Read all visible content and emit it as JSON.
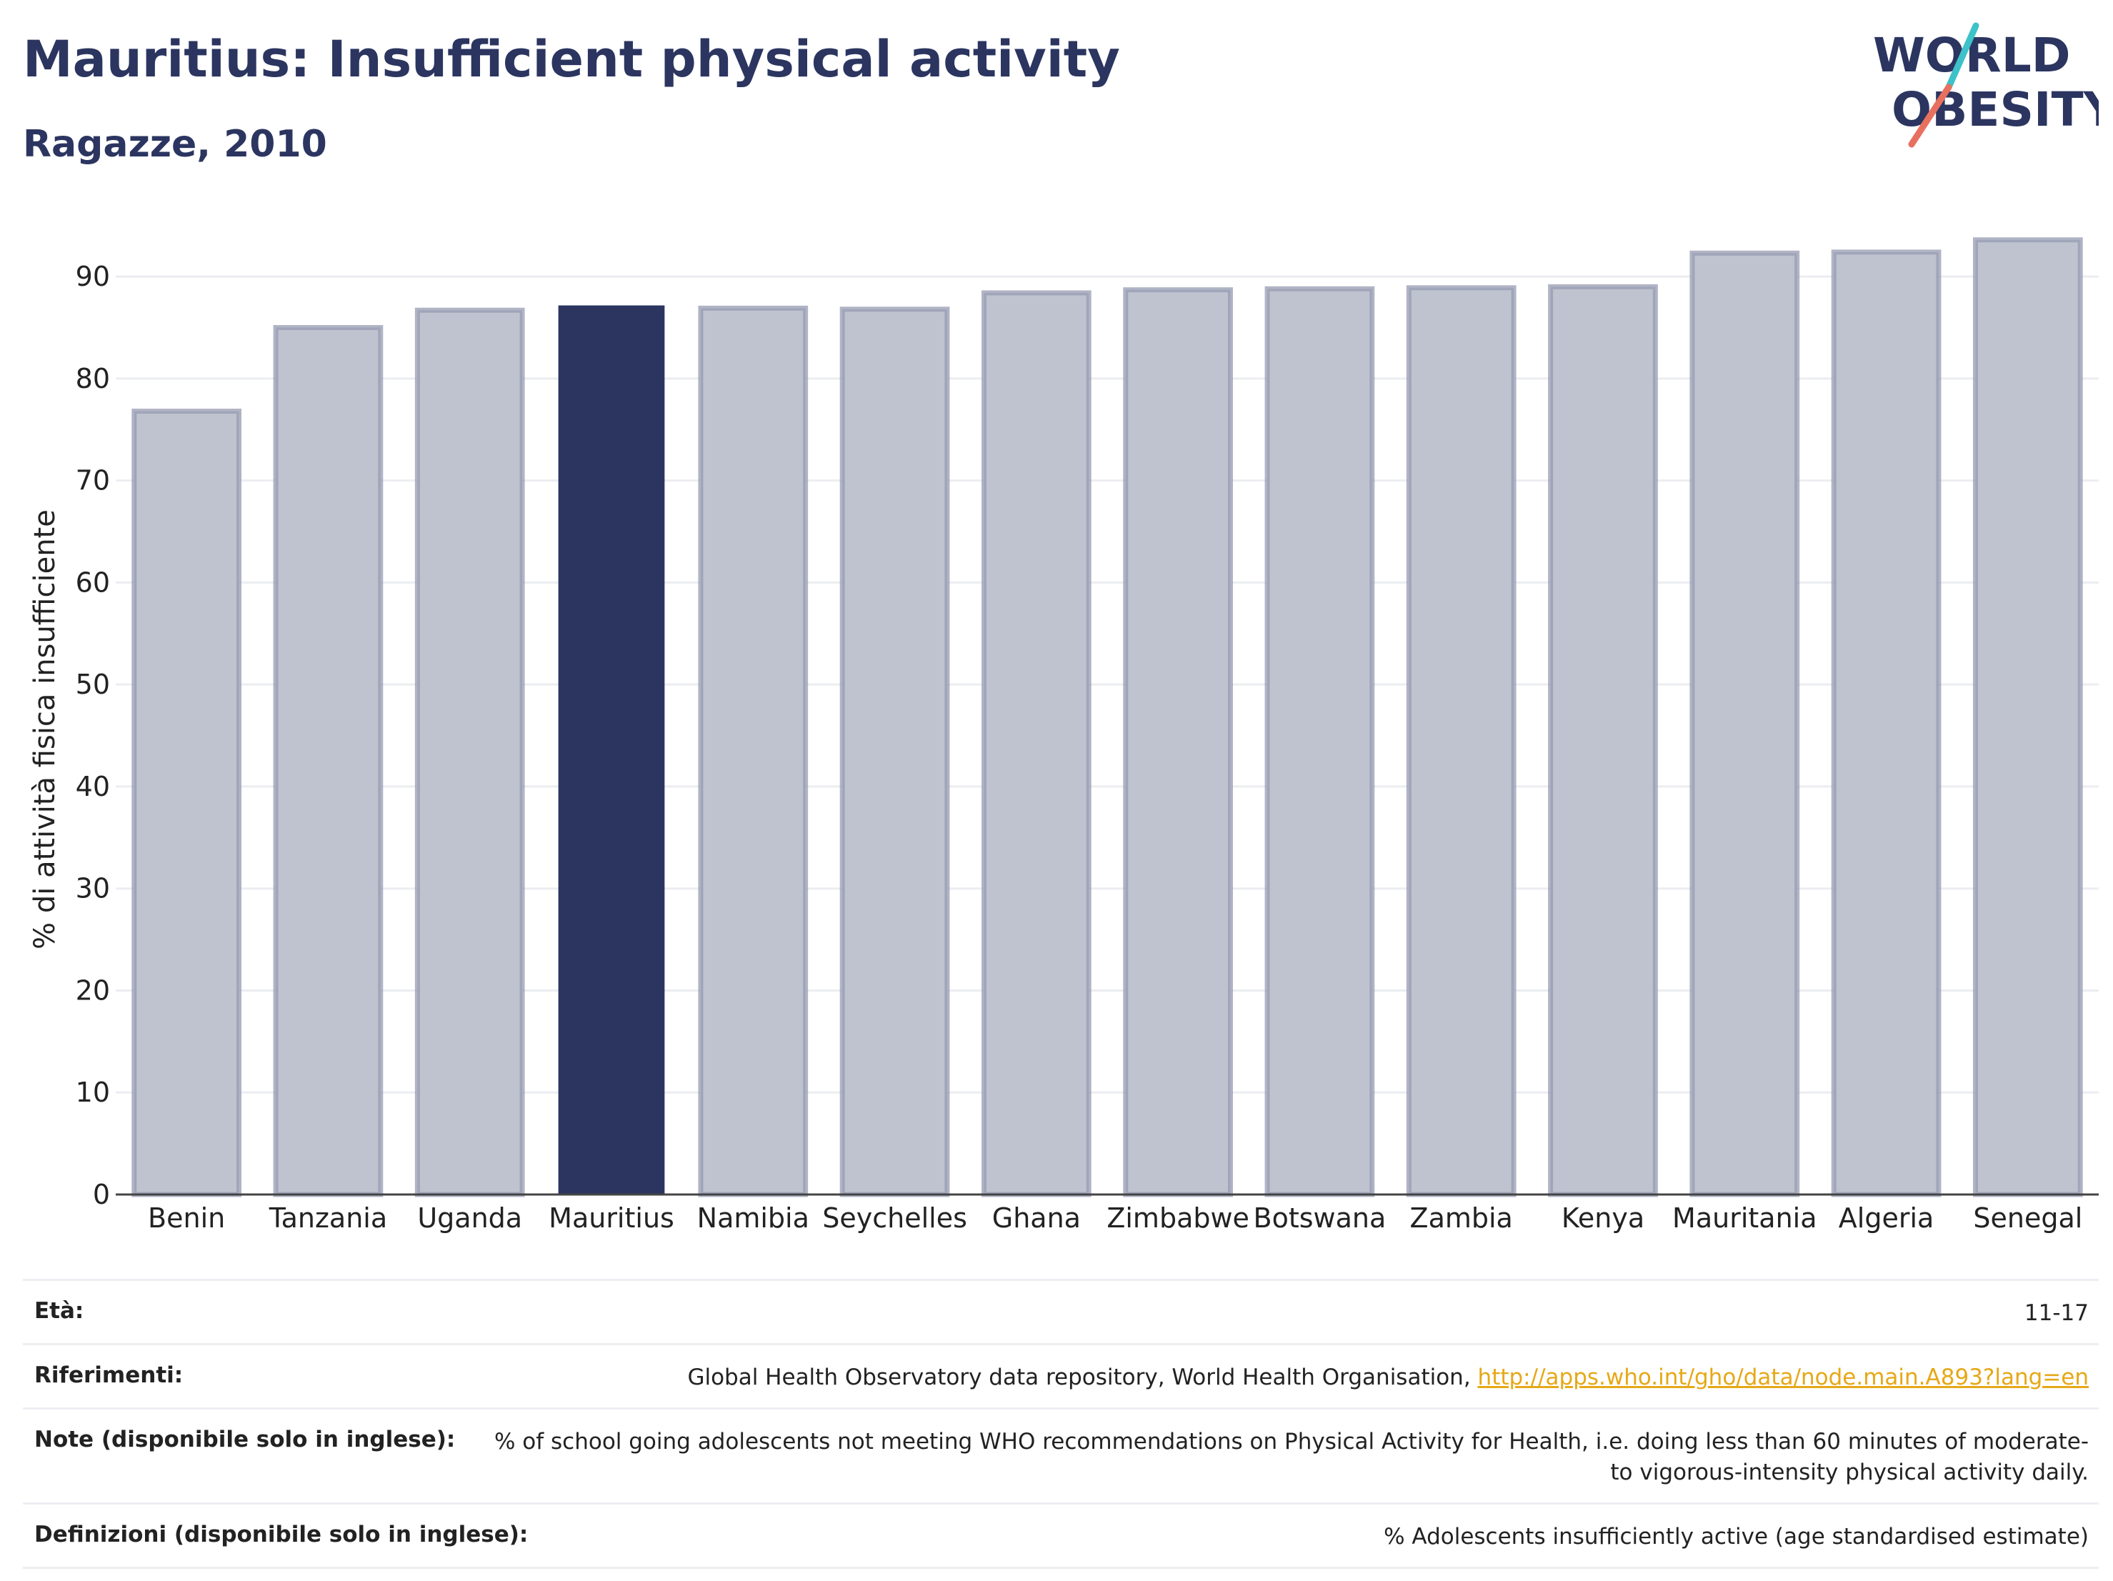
{
  "header": {
    "title": "Mauritius: Insufficient physical activity",
    "subtitle": "Ragazze, 2010"
  },
  "logo": {
    "line1": "WORLD",
    "line2": "OBESITY",
    "colors": {
      "text": "#2b3560",
      "slash_top": "#3ec1c9",
      "slash_bottom": "#e8705f"
    }
  },
  "chart_data": {
    "type": "bar",
    "title": "Mauritius: Insufficient physical activity",
    "subtitle": "Ragazze, 2010",
    "ylabel": "% di attività fisica insufficiente",
    "xlabel": "",
    "ylim": [
      0,
      94
    ],
    "yticks": [
      0,
      10,
      20,
      30,
      40,
      50,
      60,
      70,
      80,
      90
    ],
    "grid": true,
    "categories": [
      "Benin",
      "Tanzania",
      "Uganda",
      "Mauritius",
      "Namibia",
      "Seychelles",
      "Ghana",
      "Zimbabwe",
      "Botswana",
      "Zambia",
      "Kenya",
      "Mauritania",
      "Algeria",
      "Senegal"
    ],
    "values": [
      76.8,
      85.0,
      86.7,
      87.1,
      86.9,
      86.8,
      88.4,
      88.7,
      88.8,
      88.9,
      89.0,
      92.3,
      92.4,
      93.6
    ],
    "highlight": "Mauritius",
    "colors": {
      "bar": "#bfc3cf",
      "bar_outline": "#959bb2",
      "highlight": "#2b3560",
      "grid": "#ebedf1",
      "axis": "#444444"
    }
  },
  "info": [
    {
      "label": "Età:",
      "value": "11-17"
    },
    {
      "label": "Riferimenti:",
      "value": "Global Health Observatory data repository, World Health Organisation, ",
      "link": "http://apps.who.int/gho/data/node.main.A893?lang=en"
    },
    {
      "label": "Note (disponibile solo in inglese):",
      "value": "% of school going adolescents not meeting WHO recommendations on Physical Activity for Health, i.e. doing less than 60 minutes of moderate- to vigorous-intensity physical activity daily."
    },
    {
      "label": "Definizioni (disponibile solo in inglese):",
      "value": "% Adolescents insufficiently active (age standardised estimate)"
    }
  ]
}
